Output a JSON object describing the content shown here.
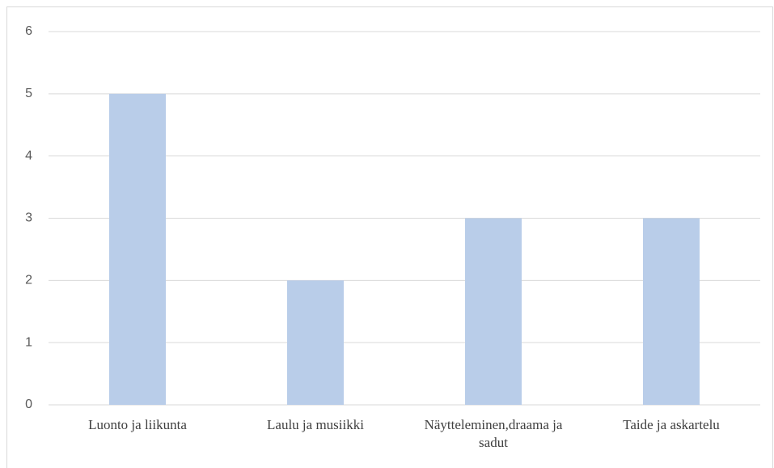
{
  "chart_data": {
    "type": "bar",
    "categories": [
      "Luonto ja liikunta",
      "Laulu ja musiikki",
      "Näytteleminen,draama ja sadut",
      "Taide ja askartelu"
    ],
    "values": [
      5,
      2,
      3,
      3
    ],
    "color": "#b9cde9",
    "ylim": [
      0,
      6
    ],
    "yticks": [
      0,
      1,
      2,
      3,
      4,
      5,
      6
    ],
    "grid": true
  }
}
